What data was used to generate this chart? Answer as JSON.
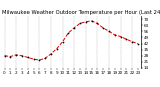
{
  "title": "Milwaukee Weather Outdoor Temperature per Hour (Last 24 Hours)",
  "hours": [
    0,
    1,
    2,
    3,
    4,
    5,
    6,
    7,
    8,
    9,
    10,
    11,
    12,
    13,
    14,
    15,
    16,
    17,
    18,
    19,
    20,
    21,
    22,
    23
  ],
  "temps": [
    28,
    27,
    29,
    28,
    26,
    24,
    23,
    25,
    30,
    36,
    44,
    54,
    60,
    65,
    67,
    68,
    65,
    60,
    56,
    52,
    50,
    47,
    44,
    42
  ],
  "line_color": "#dd0000",
  "marker_color": "#000000",
  "bg_color": "#ffffff",
  "grid_color": "#aaaaaa",
  "ylim": [
    14,
    74
  ],
  "yticks": [
    14,
    21,
    28,
    35,
    42,
    49,
    56,
    63,
    70
  ],
  "title_fontsize": 3.8,
  "tick_fontsize": 3.0,
  "figwidth": 1.6,
  "figheight": 0.87,
  "dpi": 100
}
